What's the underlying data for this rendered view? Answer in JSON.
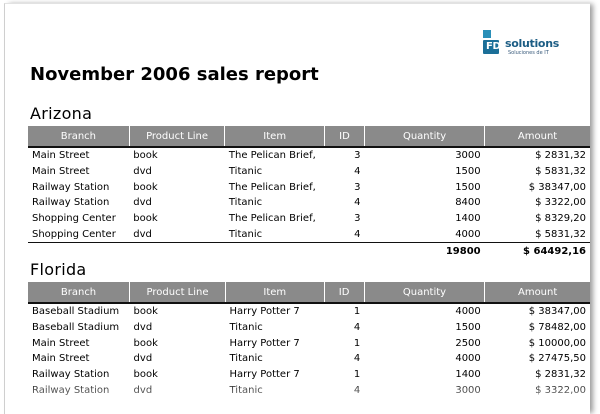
{
  "logo": {
    "mark_text": "FDV",
    "name": "solutions",
    "tagline": "Soluciones de IT"
  },
  "report_title": "November 2006 sales report",
  "columns": [
    "Branch",
    "Product Line",
    "Item",
    "ID",
    "Quantity",
    "Amount"
  ],
  "sections": [
    {
      "title": "Arizona",
      "rows": [
        [
          "Main Street",
          "book",
          "The Pelican Brief,",
          "3",
          "3000",
          "$ 2831,32"
        ],
        [
          "Main Street",
          "dvd",
          "Titanic",
          "4",
          "1500",
          "$ 5831,32"
        ],
        [
          "Railway Station",
          "book",
          "The Pelican Brief,",
          "3",
          "1500",
          "$ 38347,00"
        ],
        [
          "Railway Station",
          "dvd",
          "Titanic",
          "4",
          "8400",
          "$ 3322,00"
        ],
        [
          "Shopping Center",
          "book",
          "The Pelican Brief,",
          "3",
          "1400",
          "$ 8329,20"
        ],
        [
          "Shopping Center",
          "dvd",
          "Titanic",
          "4",
          "4000",
          "$ 5831,32"
        ]
      ],
      "total_quantity": "19800",
      "total_amount": "$ 64492,16"
    },
    {
      "title": "Florida",
      "rows": [
        [
          "Baseball Stadium",
          "book",
          "Harry Potter 7",
          "1",
          "4000",
          "$ 38347,00"
        ],
        [
          "Baseball Stadium",
          "dvd",
          "Titanic",
          "4",
          "1500",
          "$ 78482,00"
        ],
        [
          "Main Street",
          "book",
          "Harry Potter 7",
          "1",
          "2500",
          "$ 10000,00"
        ],
        [
          "Main Street",
          "dvd",
          "Titanic",
          "4",
          "4000",
          "$ 27475,50"
        ],
        [
          "Railway Station",
          "book",
          "Harry Potter 7",
          "1",
          "1400",
          "$ 2831,32"
        ],
        [
          "Railway Station",
          "dvd",
          "Titanic",
          "4",
          "3000",
          "$ 3322,00"
        ]
      ]
    }
  ],
  "colors": {
    "header_bg": "#8a8a8a",
    "logo_blue": "#1c5d84"
  }
}
